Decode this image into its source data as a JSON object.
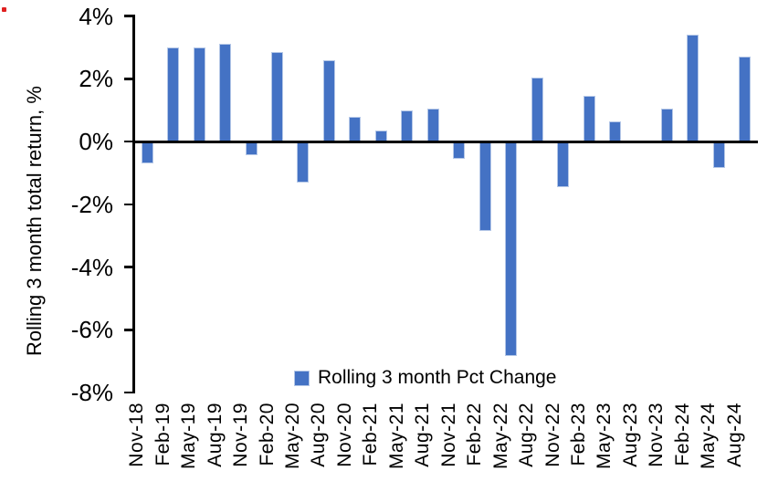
{
  "colors": {
    "bar_fill": "#4472C4",
    "bar_border": "#B4C7E7",
    "axis": "#000000",
    "background": "#FFFFFF",
    "artifact_dot": "#E02020"
  },
  "legend": {
    "label": "Rolling 3 month Pct Change"
  },
  "chart_data": {
    "type": "bar",
    "title": "",
    "xlabel": "",
    "ylabel": "Rolling 3 month total return, %",
    "legend": "Rolling 3 month Pct Change",
    "legend_position": "bottom-center-inside",
    "grid": false,
    "ylim": [
      -8,
      4
    ],
    "ytick_labels": [
      "4%",
      "2%",
      "0%",
      "-2%",
      "-4%",
      "-6%",
      "-8%"
    ],
    "categories": [
      "Nov-18",
      "Feb-19",
      "May-19",
      "Aug-19",
      "Nov-19",
      "Feb-20",
      "May-20",
      "Aug-20",
      "Nov-20",
      "Feb-21",
      "May-21",
      "Aug-21",
      "Nov-21",
      "Feb-22",
      "May-22",
      "Aug-22",
      "Nov-22",
      "Feb-23",
      "May-23",
      "Aug-23",
      "Nov-23",
      "Feb-24",
      "May-24",
      "Aug-24"
    ],
    "values": [
      -0.7,
      3.0,
      3.0,
      3.1,
      -0.45,
      2.85,
      -1.3,
      2.6,
      0.8,
      0.35,
      1.0,
      1.05,
      -0.55,
      -2.85,
      -6.85,
      2.05,
      -1.45,
      1.45,
      0.65,
      0.0,
      1.05,
      3.4,
      -0.85,
      2.7
    ],
    "units": "percent"
  }
}
